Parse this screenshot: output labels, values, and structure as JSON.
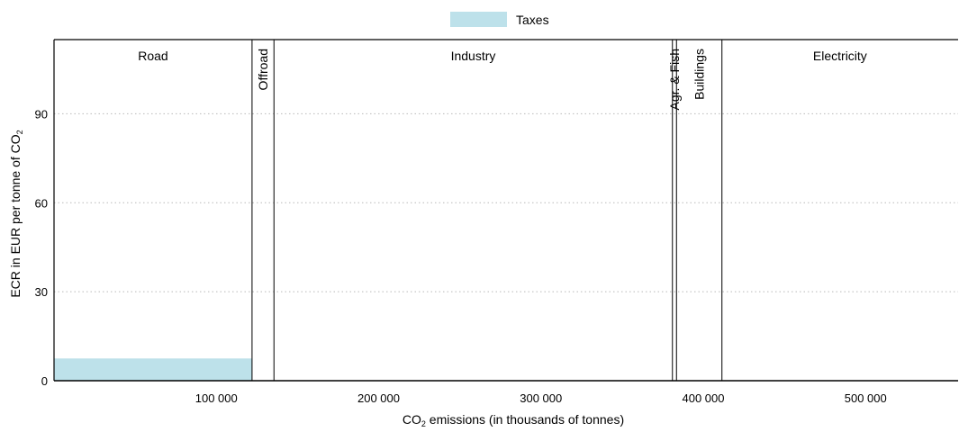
{
  "chart_data": {
    "type": "bar",
    "legend": {
      "placement": "top-center",
      "entries": [
        {
          "label": "Taxes",
          "color": "#bde1ea"
        }
      ]
    },
    "xaxis": {
      "label": "CO",
      "label_subscript": "2",
      "label_suffix": " emissions (in thousands of tonnes)",
      "range": [
        0,
        557000
      ],
      "ticks": [
        100000,
        200000,
        300000,
        400000,
        500000
      ],
      "tick_labels": [
        "100 000",
        "200 000",
        "300 000",
        "400 000",
        "500 000"
      ]
    },
    "yaxis": {
      "label": "ECR in EUR per tonne of CO",
      "label_subscript": "2",
      "range": [
        0,
        115
      ],
      "ticks": [
        0,
        30,
        60,
        90
      ],
      "tick_labels": [
        "0",
        "30",
        "60",
        "90"
      ],
      "grid": "dotted"
    },
    "sectors": [
      {
        "name": "Road",
        "start": 0,
        "end": 122000,
        "label_orientation": "horizontal"
      },
      {
        "name": "Offroad",
        "start": 122000,
        "end": 135500,
        "label_orientation": "vertical"
      },
      {
        "name": "Industry",
        "start": 135500,
        "end": 381000,
        "label_orientation": "horizontal"
      },
      {
        "name": "Agr. & Fish",
        "start": 381000,
        "end": 383500,
        "label_orientation": "vertical"
      },
      {
        "name": "Buildings",
        "start": 383500,
        "end": 411500,
        "label_orientation": "vertical"
      },
      {
        "name": "Electricity",
        "start": 411500,
        "end": 557000,
        "label_orientation": "horizontal"
      }
    ],
    "series": [
      {
        "name": "Taxes",
        "color": "#bde1ea",
        "bars": [
          {
            "sector": "Road",
            "start": 0,
            "end": 122000,
            "value": 7.5
          }
        ]
      }
    ]
  }
}
